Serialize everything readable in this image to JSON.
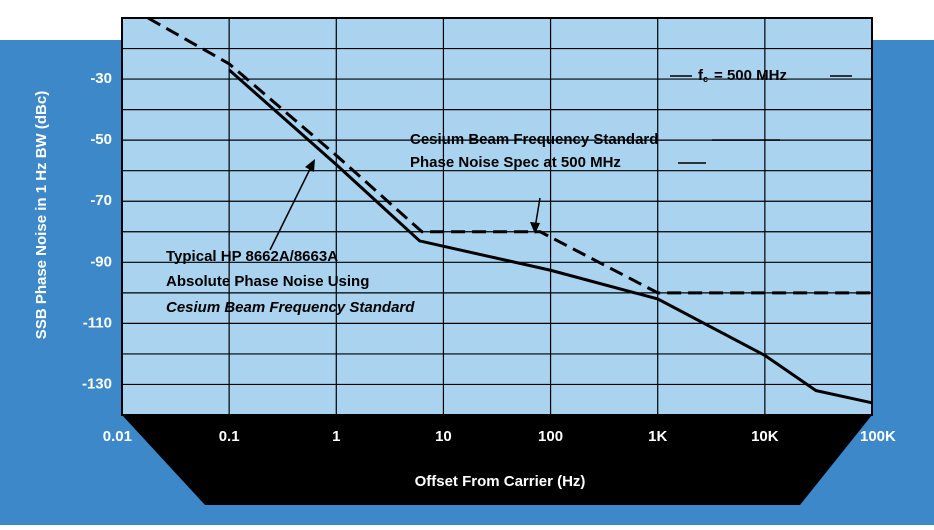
{
  "chart_data": {
    "type": "line",
    "ylabel": "SSB Phase Noise in 1 Hz BW (dBc)",
    "xlabel": "Offset From Carrier (Hz)",
    "xscale": "log",
    "xlim": [
      0.01,
      100000
    ],
    "ylim": [
      -140,
      -10
    ],
    "xticks": [
      0.01,
      0.1,
      1,
      10,
      100,
      {
        "value": 1000,
        "label": "1K"
      },
      {
        "value": 10000,
        "label": "10K"
      },
      {
        "value": 100000,
        "label": "100K"
      }
    ],
    "yticks": [
      -10,
      -30,
      -50,
      -70,
      -90,
      -110,
      -130
    ],
    "yminor": [
      -20,
      -40,
      -60,
      -80,
      -100,
      -120,
      -140
    ],
    "grid": true,
    "series": [
      {
        "color": "#000000",
        "style": "solid",
        "x": [
          0.1,
          1,
          6,
          100,
          1000,
          10000,
          30000,
          100000
        ],
        "values": [
          -27,
          -58,
          -83,
          -92.6,
          -102,
          -120.5,
          -132,
          -136
        ]
      },
      {
        "color": "#000000",
        "style": "dashed",
        "x": [
          0.0175,
          0.1,
          1,
          6.3,
          80,
          1000,
          100000
        ],
        "values": [
          -10,
          -25,
          -55,
          -80,
          -80,
          -100,
          -100
        ]
      }
    ],
    "annotations": {
      "fc": {
        "f": "f",
        "sub": "c",
        "rest": "= 500 MHz"
      },
      "cesium": [
        "Cesium Beam Frequency Standard",
        "Phase Noise Spec at 500 MHz"
      ],
      "typical": [
        "Typical HP 8662A/8663A",
        "Absolute Phase Noise Using",
        "Cesium Beam Frequency Standard"
      ]
    }
  }
}
